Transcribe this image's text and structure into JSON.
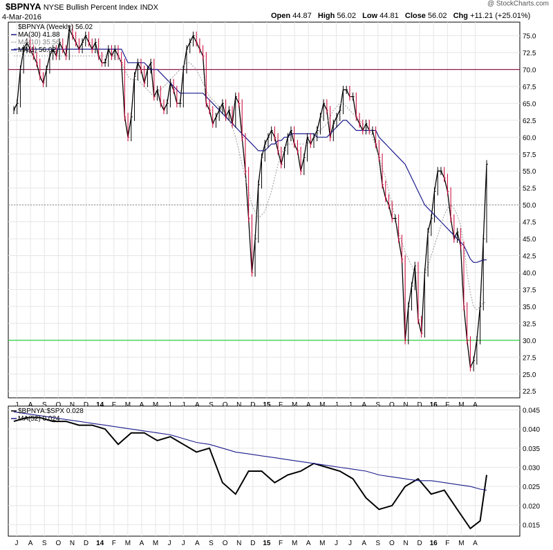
{
  "header": {
    "symbol": "$BPNYA",
    "name": "NYSE Bullish Percent Index",
    "exchange": "INDX",
    "date": "4-Mar-2016",
    "watermark": "@ StockCharts.com",
    "ohlc": {
      "open_label": "Open",
      "open": "44.87",
      "high_label": "High",
      "high": "56.02",
      "low_label": "Low",
      "low": "44.81",
      "close_label": "Close",
      "close": "56.02",
      "chg_label": "Chg",
      "chg": "+11.21 (+25.01%)"
    }
  },
  "colors": {
    "background": "#ffffff",
    "grid": "#e6e6e6",
    "border": "#000000",
    "bar_up": "#000000",
    "bar_down": "#cc0033",
    "ma30": "#1a1a8c",
    "ma10": "#999999",
    "line70": "#8b1a4a",
    "line50": "#888888",
    "line30": "#2ecc40",
    "ratio_line": "#000000",
    "ratio_ma": "#1a1a8c"
  },
  "chart_data": [
    {
      "type": "line",
      "title": "$BPNYA NYSE Bullish Percent Index INDX",
      "description_label": "$BPNYA (Weekly) 56.02",
      "legend": [
        {
          "name": "MA(30) 41.88",
          "color": "#1a1a8c",
          "style": "solid"
        },
        {
          "name": "MA(10) 35.56",
          "color": "#999999",
          "style": "dotted"
        },
        {
          "name": "MA(1) 56.02",
          "color": "#1a1a8c",
          "style": "solid"
        }
      ],
      "ylim": [
        21.5,
        77
      ],
      "yticks": [
        22.5,
        25.0,
        27.5,
        30.0,
        32.5,
        35.0,
        37.5,
        40.0,
        42.5,
        45.0,
        47.5,
        50.0,
        52.5,
        55.0,
        57.5,
        60.0,
        62.5,
        65.0,
        67.5,
        70.0,
        72.5,
        75.0
      ],
      "xticks": [
        "J",
        "A",
        "S",
        "O",
        "N",
        "D",
        "14",
        "F",
        "M",
        "A",
        "M",
        "J",
        "J",
        "A",
        "S",
        "O",
        "N",
        "D",
        "15",
        "F",
        "M",
        "A",
        "M",
        "J",
        "J",
        "A",
        "S",
        "O",
        "N",
        "D",
        "16",
        "F",
        "M",
        "A"
      ],
      "reference_lines": [
        {
          "value": 70,
          "color": "#8b1a4a",
          "style": "solid"
        },
        {
          "value": 50,
          "color": "#888888",
          "style": "dotted"
        },
        {
          "value": 30,
          "color": "#2ecc40",
          "style": "solid"
        }
      ],
      "x": [
        0,
        1,
        2,
        3,
        4,
        5,
        6,
        7,
        8,
        9,
        10,
        11,
        12,
        13,
        14,
        15,
        16,
        17,
        18,
        19,
        20,
        21,
        22,
        23,
        24,
        25,
        26,
        27,
        28,
        29,
        30,
        31,
        32,
        33,
        34,
        35,
        36,
        37,
        38,
        39,
        40,
        41,
        42,
        43,
        44,
        45,
        46,
        47,
        48,
        49,
        50,
        51,
        52,
        53,
        54,
        55,
        56,
        57,
        58,
        59,
        60,
        61,
        62,
        63,
        64,
        65,
        66,
        67,
        68,
        69,
        70,
        71,
        72,
        73,
        74,
        75,
        76,
        77,
        78,
        79,
        80,
        81,
        82,
        83,
        84,
        85,
        86,
        87,
        88,
        89,
        90,
        91,
        92,
        93,
        94,
        95,
        96,
        97,
        98,
        99,
        100,
        101,
        102,
        103,
        104,
        105,
        106,
        107,
        108,
        109,
        110,
        111,
        112,
        113,
        114,
        115,
        116,
        117,
        118,
        119,
        120,
        121,
        122,
        123,
        124,
        125,
        126,
        127,
        128,
        129,
        130,
        131,
        132,
        133,
        134,
        135,
        136,
        137,
        138,
        139,
        140,
        141,
        142,
        143,
        144,
        145
      ],
      "series": [
        {
          "name": "$BPNYA (Weekly)",
          "values": [
            64,
            65,
            70,
            73,
            74,
            73,
            72,
            71,
            69,
            68,
            70,
            72,
            73,
            72,
            74,
            73,
            72,
            76,
            75,
            74,
            73,
            74,
            75,
            74,
            73,
            74,
            72,
            71,
            71,
            73,
            72,
            73,
            72,
            71,
            63,
            60,
            63,
            69,
            71,
            70,
            68,
            70,
            71,
            66,
            67,
            65,
            64,
            65,
            68,
            67,
            65,
            65,
            70,
            73,
            74,
            75,
            74,
            73,
            72,
            65,
            64,
            62,
            63,
            64,
            65,
            63,
            64,
            62,
            66,
            65,
            60,
            55,
            48,
            40,
            45,
            53,
            57,
            59,
            60,
            61,
            60,
            58,
            56,
            58,
            60,
            61,
            59,
            58,
            55,
            57,
            60,
            59,
            60,
            61,
            63,
            65,
            64,
            60,
            62,
            63,
            64,
            67,
            67,
            66,
            66,
            63,
            62,
            61,
            62,
            61,
            61,
            59,
            57,
            53,
            51,
            50,
            48,
            48,
            45,
            42,
            30,
            35,
            38,
            41,
            33,
            31,
            40,
            46,
            48,
            52,
            55,
            55,
            54,
            52,
            48,
            45,
            46,
            44,
            35,
            30,
            26,
            27,
            30,
            35,
            45,
            56.02
          ]
        },
        {
          "name": "MA(30)",
          "values": [
            73,
            73,
            73,
            73,
            73,
            73,
            73,
            73,
            73,
            73,
            73,
            73,
            73,
            73,
            73,
            73,
            73,
            73,
            73,
            73,
            73,
            73,
            73,
            73,
            73,
            73,
            73,
            73,
            73,
            73,
            73,
            73,
            73,
            73,
            72,
            71,
            71,
            71,
            71,
            71,
            71,
            70.5,
            70,
            70,
            70,
            69.5,
            69,
            68.5,
            68,
            67.5,
            67,
            66.5,
            66.5,
            66.5,
            66.5,
            66.5,
            66.5,
            66.5,
            66.5,
            66,
            65.5,
            65,
            64.5,
            64,
            63.5,
            63,
            62.5,
            62,
            61.5,
            61,
            60.5,
            60,
            59.5,
            59,
            58.5,
            58,
            58,
            58,
            58.5,
            59,
            59,
            59.5,
            59.5,
            60,
            60,
            60.5,
            60.5,
            60.5,
            60.5,
            60.5,
            60.5,
            60.5,
            60.5,
            60,
            60,
            60,
            60,
            60.5,
            61,
            61.5,
            62,
            62.5,
            62.5,
            62,
            61.5,
            61,
            61,
            61,
            61,
            61,
            61,
            61,
            60,
            59.5,
            59,
            58.5,
            58,
            57.5,
            57,
            56.5,
            56,
            55,
            54,
            53,
            52,
            51,
            50,
            49.5,
            49,
            48.5,
            48,
            47.5,
            47,
            46.5,
            46,
            45.5,
            45,
            44.5,
            44,
            43,
            42,
            41.5,
            41.5,
            41.7,
            41.88,
            41.88
          ]
        },
        {
          "name": "MA(10)",
          "values": [
            72,
            72,
            72,
            72,
            72,
            72,
            72,
            72,
            72,
            72,
            72,
            72,
            72,
            72,
            72,
            72,
            72,
            72,
            72,
            72,
            72,
            72,
            72,
            72,
            72,
            72,
            72,
            72,
            72,
            72,
            72,
            72,
            72,
            71,
            70,
            69,
            68.5,
            68.5,
            68.5,
            68,
            67.5,
            67,
            66.5,
            66,
            66.5,
            67,
            67.5,
            68,
            68.5,
            69,
            69.5,
            70,
            70.5,
            71,
            71,
            70.5,
            70,
            69,
            68,
            67,
            66,
            65.5,
            65,
            64.5,
            64,
            63.5,
            62.5,
            61.5,
            60,
            58,
            56,
            54,
            52,
            50,
            49,
            48,
            48.5,
            49,
            50.5,
            52,
            54,
            56,
            57.5,
            58.5,
            59,
            59,
            59,
            59,
            59,
            59,
            59,
            59.5,
            60,
            60.5,
            61,
            61.5,
            62,
            63,
            64,
            64.5,
            65,
            65,
            64.5,
            64,
            63.5,
            63,
            62.5,
            62,
            61.5,
            61,
            60,
            58.5,
            57,
            55.5,
            54,
            52,
            50,
            48,
            46,
            44.5,
            43,
            42,
            41,
            40,
            40,
            40,
            40,
            41,
            42.5,
            44,
            45.5,
            47,
            48.5,
            49.5,
            50,
            49.5,
            48.5,
            47,
            44,
            40,
            37,
            35,
            34.5,
            35,
            35.56,
            35.56
          ]
        }
      ]
    },
    {
      "type": "line",
      "title": "$BPNYA:$SPX 0.028",
      "legend": [
        {
          "name": "$BPNYA:$SPX 0.028",
          "color": "#000000",
          "style": "solid"
        },
        {
          "name": "MA(52) 0.024",
          "color": "#1a1a8c",
          "style": "solid"
        }
      ],
      "ylim": [
        0.012,
        0.046
      ],
      "yticks": [
        0.015,
        0.02,
        0.025,
        0.03,
        0.035,
        0.04,
        0.045
      ],
      "xticks": [
        "J",
        "A",
        "S",
        "O",
        "N",
        "D",
        "14",
        "F",
        "M",
        "A",
        "M",
        "J",
        "J",
        "A",
        "S",
        "O",
        "N",
        "D",
        "15",
        "F",
        "M",
        "A",
        "M",
        "J",
        "J",
        "A",
        "S",
        "O",
        "N",
        "D",
        "16",
        "F",
        "M",
        "A"
      ],
      "x": [
        0,
        4,
        8,
        12,
        16,
        20,
        24,
        28,
        32,
        36,
        40,
        44,
        48,
        52,
        56,
        60,
        64,
        68,
        72,
        76,
        80,
        84,
        88,
        92,
        96,
        100,
        104,
        108,
        112,
        116,
        120,
        124,
        128,
        132,
        136,
        140,
        143,
        145
      ],
      "series": [
        {
          "name": "$BPNYA:$SPX",
          "values": [
            0.042,
            0.043,
            0.043,
            0.042,
            0.042,
            0.041,
            0.041,
            0.04,
            0.036,
            0.039,
            0.039,
            0.037,
            0.038,
            0.036,
            0.034,
            0.035,
            0.026,
            0.023,
            0.029,
            0.029,
            0.026,
            0.028,
            0.029,
            0.031,
            0.03,
            0.029,
            0.027,
            0.022,
            0.019,
            0.02,
            0.025,
            0.027,
            0.023,
            0.024,
            0.019,
            0.014,
            0.016,
            0.028
          ]
        },
        {
          "name": "MA(52)",
          "values": [
            0.0445,
            0.044,
            0.0435,
            0.043,
            0.0425,
            0.042,
            0.0415,
            0.041,
            0.0405,
            0.04,
            0.0395,
            0.039,
            0.0385,
            0.0375,
            0.0365,
            0.036,
            0.035,
            0.034,
            0.0335,
            0.033,
            0.0325,
            0.032,
            0.0315,
            0.031,
            0.0305,
            0.03,
            0.0295,
            0.029,
            0.028,
            0.0275,
            0.027,
            0.0265,
            0.0265,
            0.026,
            0.0255,
            0.025,
            0.0243,
            0.024
          ]
        }
      ]
    }
  ]
}
